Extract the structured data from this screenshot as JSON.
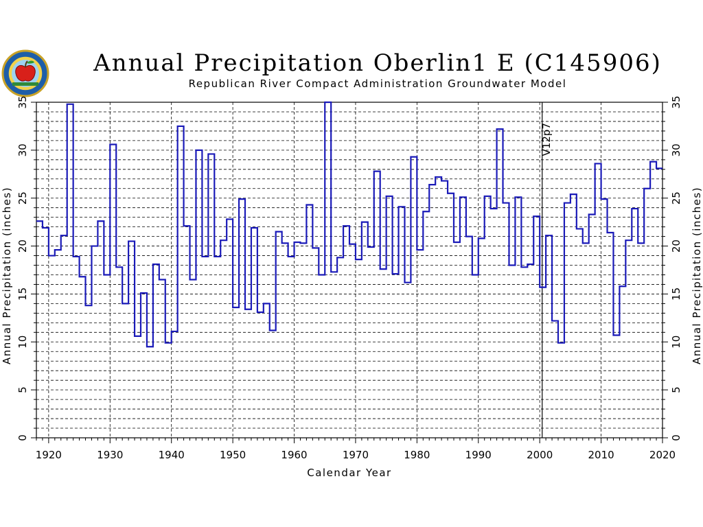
{
  "header": {
    "title": "Annual Precipitation Oberlin1 E (C145906)",
    "subtitle": "Republican River Compact Administration Groundwater Model"
  },
  "chart_data": {
    "type": "line",
    "style": "step",
    "title": "Annual Precipitation Oberlin1 E (C145906)",
    "subtitle": "Republican River Compact Administration Groundwater Model",
    "xlabel": "Calendar Year",
    "ylabel": "Annual Precipitation (inches)",
    "y2label": "Annual Precipitation (inches)",
    "xlim": [
      1918,
      2020
    ],
    "ylim": [
      0,
      35
    ],
    "xticks": [
      "1920",
      "1930",
      "1940",
      "1950",
      "1960",
      "1970",
      "1980",
      "1990",
      "2000",
      "2010",
      "2020"
    ],
    "yticks": [
      "0",
      "5",
      "10",
      "15",
      "20",
      "25",
      "30",
      "35"
    ],
    "grid": true,
    "colors": {
      "series": "#1a1ab8",
      "grid": "#000000",
      "annotation": "#000000"
    },
    "annotation": {
      "label": "V12p7",
      "x": 2000.4
    },
    "series": [
      {
        "x": [
          1918,
          1919,
          1920,
          1921,
          1922,
          1923,
          1924,
          1925,
          1926,
          1927,
          1928,
          1929,
          1930,
          1931,
          1932,
          1933,
          1934,
          1935,
          1936,
          1937,
          1938,
          1939,
          1940,
          1941,
          1942,
          1943,
          1944,
          1945,
          1946,
          1947,
          1948,
          1949,
          1950,
          1951,
          1952,
          1953,
          1954,
          1955,
          1956,
          1957,
          1958,
          1959,
          1960,
          1961,
          1962,
          1963,
          1964,
          1965,
          1966,
          1967,
          1968,
          1969,
          1970,
          1971,
          1972,
          1973,
          1974,
          1975,
          1976,
          1977,
          1978,
          1979,
          1980,
          1981,
          1982,
          1983,
          1984,
          1985,
          1986,
          1987,
          1988,
          1989,
          1990,
          1991,
          1992,
          1993,
          1994,
          1995,
          1996,
          1997,
          1998,
          1999,
          2000,
          2001,
          2002,
          2003,
          2004,
          2005,
          2006,
          2007,
          2008,
          2009,
          2010,
          2011,
          2012,
          2013,
          2014,
          2015,
          2016,
          2017,
          2018,
          2019
        ],
        "values": [
          22.6,
          21.9,
          19.0,
          19.6,
          21.1,
          34.8,
          18.9,
          16.8,
          13.8,
          20.0,
          22.6,
          17.0,
          30.6,
          17.8,
          14.0,
          20.5,
          10.6,
          15.1,
          9.5,
          18.1,
          16.5,
          9.9,
          11.1,
          32.5,
          22.1,
          16.5,
          30.0,
          18.9,
          29.6,
          18.9,
          20.6,
          22.8,
          13.6,
          24.9,
          13.4,
          21.9,
          13.1,
          14.0,
          11.2,
          21.5,
          20.3,
          18.9,
          20.4,
          20.3,
          24.3,
          19.8,
          17.0,
          35.0,
          17.3,
          18.8,
          22.1,
          20.2,
          18.6,
          22.5,
          19.9,
          27.8,
          17.6,
          25.2,
          17.1,
          24.1,
          16.2,
          29.3,
          19.6,
          23.6,
          26.4,
          27.2,
          26.8,
          25.5,
          20.4,
          25.1,
          21.0,
          17.0,
          20.8,
          25.2,
          23.9,
          32.2,
          24.5,
          18.0,
          25.1,
          17.8,
          18.1,
          23.1,
          15.7,
          21.1,
          12.2,
          9.9,
          24.5,
          25.4,
          21.8,
          20.3,
          23.3,
          28.6,
          24.9,
          21.4,
          10.7,
          15.8,
          20.6,
          23.9,
          20.3,
          26.0,
          28.8,
          28.1
        ]
      }
    ]
  }
}
